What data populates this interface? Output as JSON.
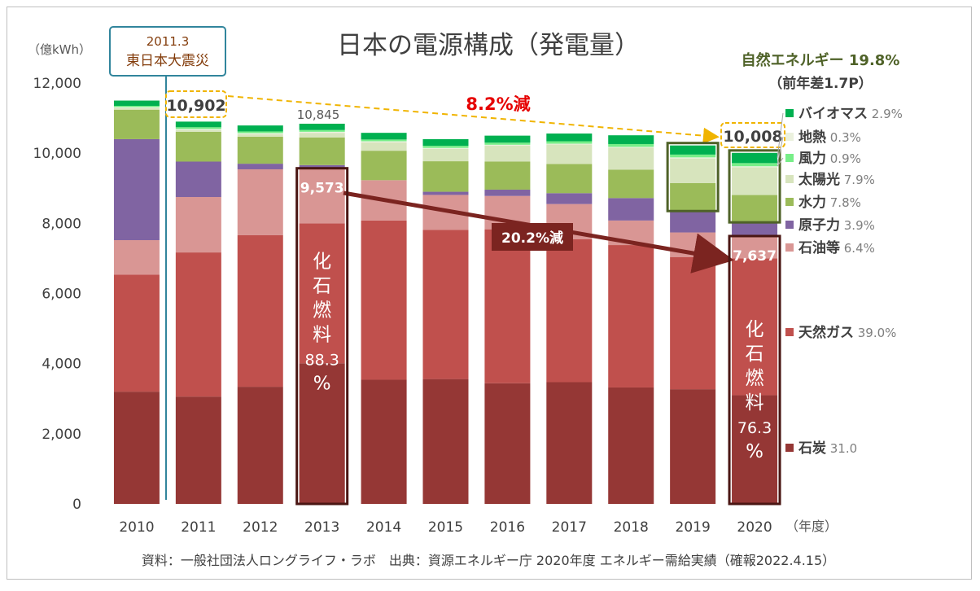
{
  "chart_data": {
    "type": "bar",
    "stacked": true,
    "title": "日本の電源構成（発電量）",
    "ylabel": "（億kWh）",
    "xlabel": "（年度）",
    "ylim": [
      0,
      12000
    ],
    "yticks": [
      0,
      2000,
      4000,
      6000,
      8000,
      10000,
      12000
    ],
    "ytick_labels": [
      "0",
      "2,000",
      "4,000",
      "6,000",
      "8,000",
      "10,000",
      "12,000"
    ],
    "grid": false,
    "categories": [
      "2010",
      "2011",
      "2012",
      "2013",
      "2014",
      "2015",
      "2016",
      "2017",
      "2018",
      "2019",
      "2020"
    ],
    "series": [
      {
        "name": "石炭",
        "color": "#953735",
        "values": [
          3200,
          3060,
          3340,
          4010,
          3540,
          3560,
          3440,
          3470,
          3320,
          3270,
          3100
        ]
      },
      {
        "name": "天然ガス",
        "color": "#c0504d",
        "values": [
          3340,
          4110,
          4320,
          3990,
          4540,
          4250,
          4390,
          4080,
          4060,
          3770,
          3900
        ]
      },
      {
        "name": "石油等",
        "color": "#d99694",
        "values": [
          980,
          1580,
          1880,
          1570,
          1150,
          1000,
          950,
          1000,
          700,
          700,
          637
        ]
      },
      {
        "name": "原子力",
        "color": "#8064a2",
        "values": [
          2880,
          1010,
          160,
          90,
          0,
          90,
          180,
          310,
          640,
          610,
          390
        ]
      },
      {
        "name": "水力",
        "color": "#9bbb59",
        "values": [
          840,
          850,
          770,
          790,
          840,
          870,
          800,
          830,
          810,
          800,
          780
        ]
      },
      {
        "name": "太陽光",
        "color": "#d7e4bd",
        "values": [
          40,
          50,
          70,
          130,
          240,
          350,
          460,
          560,
          630,
          700,
          790
        ]
      },
      {
        "name": "地熱",
        "color": "#ebf1de",
        "values": [
          30,
          30,
          30,
          30,
          30,
          30,
          20,
          20,
          20,
          30,
          30
        ]
      },
      {
        "name": "風力",
        "color": "#77ee88",
        "values": [
          40,
          50,
          50,
          50,
          50,
          60,
          60,
          70,
          80,
          80,
          90
        ]
      },
      {
        "name": "バイオマス",
        "color": "#00b050",
        "values": [
          150,
          160,
          170,
          180,
          190,
          190,
          200,
          220,
          250,
          260,
          291
        ]
      }
    ],
    "totals_labels": [
      {
        "category": "2011",
        "text": "10,902"
      },
      {
        "category": "2013",
        "text": "10,845"
      },
      {
        "category": "2020",
        "text": "10,008"
      }
    ],
    "fossil_labels": [
      {
        "category": "2013",
        "text": "9,573"
      },
      {
        "category": "2020",
        "text": "7,637"
      }
    ],
    "legend": [
      {
        "name": "バイオマス",
        "pct": "2.9%"
      },
      {
        "name": "地熱",
        "pct": "0.3%"
      },
      {
        "name": "風力",
        "pct": "0.9%"
      },
      {
        "name": "太陽光",
        "pct": "7.9%"
      },
      {
        "name": "水力",
        "pct": "7.8%"
      },
      {
        "name": "原子力",
        "pct": "3.9%"
      },
      {
        "name": "石油等",
        "pct": "6.4%"
      },
      {
        "name": "天然ガス",
        "pct": "39.0%"
      },
      {
        "name": "石炭",
        "pct": "31.0"
      }
    ],
    "annotations": {
      "earthquake_year": "2011.3",
      "earthquake_name": "東日本大震災",
      "total_decrease": "8.2%減",
      "fossil_decrease": "20.2%減",
      "renewable_title": "自然エネルギー 19.8%",
      "renewable_sub": "（前年差1.7P）",
      "fossil_2013_chars": [
        "化",
        "石",
        "燃",
        "料",
        "88.3",
        "%"
      ],
      "fossil_2020_chars": [
        "化",
        "石",
        "燃",
        "料",
        "76.3",
        "%"
      ]
    },
    "source": "資料：一般社団法人ロングライフ・ラボ　出典：資源エネルギー庁 2020年度 エネルギー需給実績（確報2022.4.15）"
  }
}
